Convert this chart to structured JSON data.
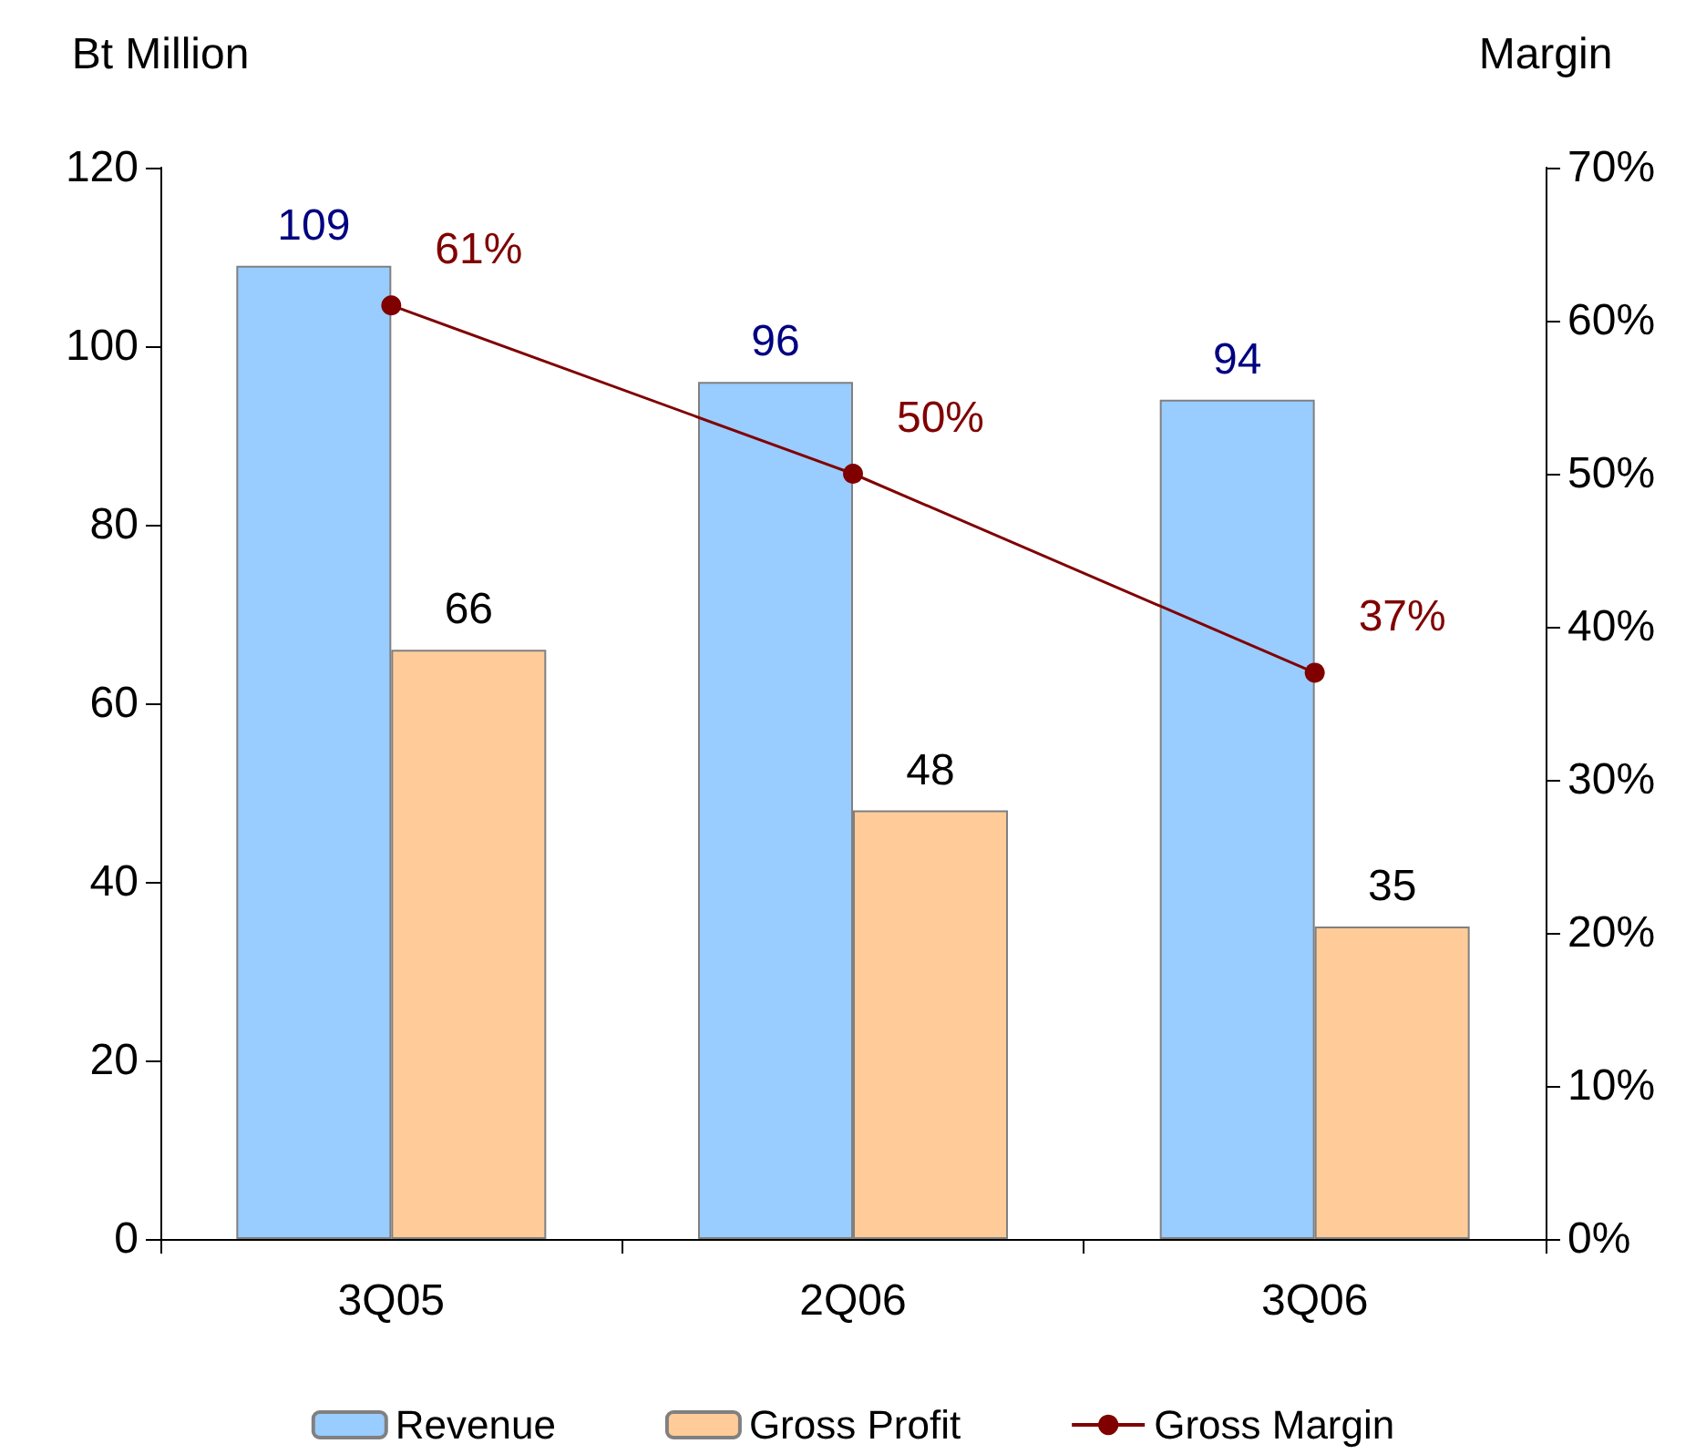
{
  "chart_data": {
    "type": "bar",
    "ylabel": "Bt Million",
    "y2label": "Margin",
    "categories": [
      "3Q05",
      "2Q06",
      "3Q06"
    ],
    "series": [
      {
        "name": "Revenue",
        "color": "#99ccff",
        "values": [
          109,
          96,
          94
        ],
        "value_labels": [
          "109",
          "96",
          "94"
        ]
      },
      {
        "name": "Gross Profit",
        "color": "#ffcc99",
        "values": [
          66,
          48,
          35
        ],
        "value_labels": [
          "66",
          "48",
          "35"
        ]
      },
      {
        "name": "Gross Margin",
        "type": "line",
        "axis": "y2",
        "color": "#800000",
        "values": [
          61,
          50,
          37
        ],
        "value_labels": [
          "61%",
          "50%",
          "37%"
        ]
      }
    ],
    "ylim": [
      0,
      120
    ],
    "yticks": [
      0,
      20,
      40,
      60,
      80,
      100,
      120
    ],
    "y2lim": [
      0,
      70
    ],
    "y2ticks": [
      {
        "value": 0,
        "label": "0%"
      },
      {
        "value": 10,
        "label": "10%"
      },
      {
        "value": 20,
        "label": "20%"
      },
      {
        "value": 30,
        "label": "30%"
      },
      {
        "value": 40,
        "label": "40%"
      },
      {
        "value": 50,
        "label": "50%"
      },
      {
        "value": 60,
        "label": "60%"
      },
      {
        "value": 70,
        "label": "70%"
      }
    ],
    "legend": "bottom",
    "marker": "circle",
    "line_style": "solid"
  }
}
